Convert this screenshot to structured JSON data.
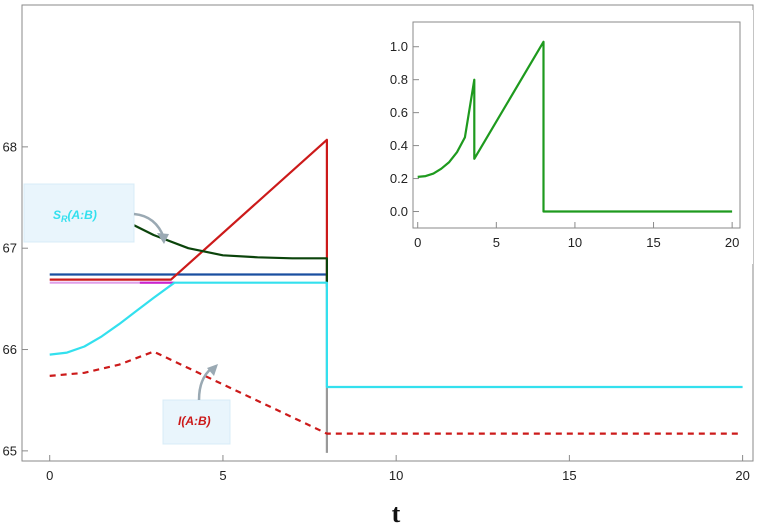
{
  "chart_data": {
    "type": "line",
    "xlabel": "t",
    "ylabel": "",
    "xlim": [
      -0.8,
      20.3
    ],
    "ylim": [
      64.9,
      69.4
    ],
    "xticks": [
      0,
      5,
      10,
      15,
      20
    ],
    "yticks": [
      65,
      66,
      67,
      68
    ],
    "grid": false,
    "series": [
      {
        "color": "#1a4fa0",
        "style": "solid",
        "x": [
          0,
          8,
          8
        ],
        "y": [
          66.74,
          66.74,
          66.62
        ]
      },
      {
        "color": "#cc1a1a",
        "style": "solid",
        "x": [
          0,
          3.5,
          8,
          8
        ],
        "y": [
          66.69,
          66.69,
          68.07,
          66.66
        ]
      },
      {
        "color": "#0b440b",
        "style": "solid",
        "x": [
          0,
          1,
          2,
          3,
          4,
          5,
          6,
          7,
          8,
          8
        ],
        "y": [
          67.5,
          67.44,
          67.3,
          67.13,
          67.0,
          66.93,
          66.91,
          66.9,
          66.9,
          66.66
        ]
      },
      {
        "color": "#e0a0e8",
        "style": "solid",
        "x": [
          0,
          3.6
        ],
        "y": [
          66.66,
          66.66
        ]
      },
      {
        "color": "#cc22cc",
        "style": "solid",
        "x": [
          2.6,
          3.6
        ],
        "y": [
          66.66,
          66.66
        ]
      },
      {
        "color": "#999999",
        "style": "solid",
        "x": [
          8,
          8
        ],
        "y": [
          66.66,
          64.98
        ]
      },
      {
        "color": "#33e0ee",
        "style": "solid",
        "x": [
          0,
          0.5,
          1,
          1.5,
          2,
          2.5,
          3,
          3.6,
          8,
          8,
          20
        ],
        "y": [
          65.95,
          65.97,
          66.03,
          66.13,
          66.25,
          66.38,
          66.51,
          66.66,
          66.66,
          65.63,
          65.63
        ]
      },
      {
        "color": "#cc1a1a",
        "style": "dashed",
        "x": [
          0,
          1,
          2,
          3,
          8,
          20
        ],
        "y": [
          65.74,
          65.77,
          65.85,
          65.98,
          65.17,
          65.17
        ]
      }
    ],
    "inset": {
      "xlim": [
        -0.3,
        20.5
      ],
      "ylim": [
        -0.1,
        1.15
      ],
      "xticks": [
        0,
        5,
        10,
        15,
        20
      ],
      "yticks": [
        0.0,
        0.2,
        0.4,
        0.6,
        0.8,
        1.0
      ],
      "ytick_labels": [
        "0.0",
        "0.2",
        "0.4",
        "0.6",
        "0.8",
        "1.0"
      ],
      "series": [
        {
          "color": "#1e9a1e",
          "style": "solid",
          "x": [
            0,
            0.5,
            1,
            1.5,
            2,
            2.5,
            3,
            3.6,
            3.6,
            8,
            8,
            20
          ],
          "y": [
            0.21,
            0.215,
            0.23,
            0.26,
            0.3,
            0.36,
            0.45,
            0.8,
            0.32,
            1.03,
            0.0,
            0.0
          ]
        }
      ]
    },
    "annotations": [
      {
        "label_main": "S",
        "label_sub": "R",
        "label_rest": "(A:B)",
        "color": "#33e0ee"
      },
      {
        "label_main": "I(A:B)",
        "color": "#cc1a1a"
      }
    ]
  }
}
